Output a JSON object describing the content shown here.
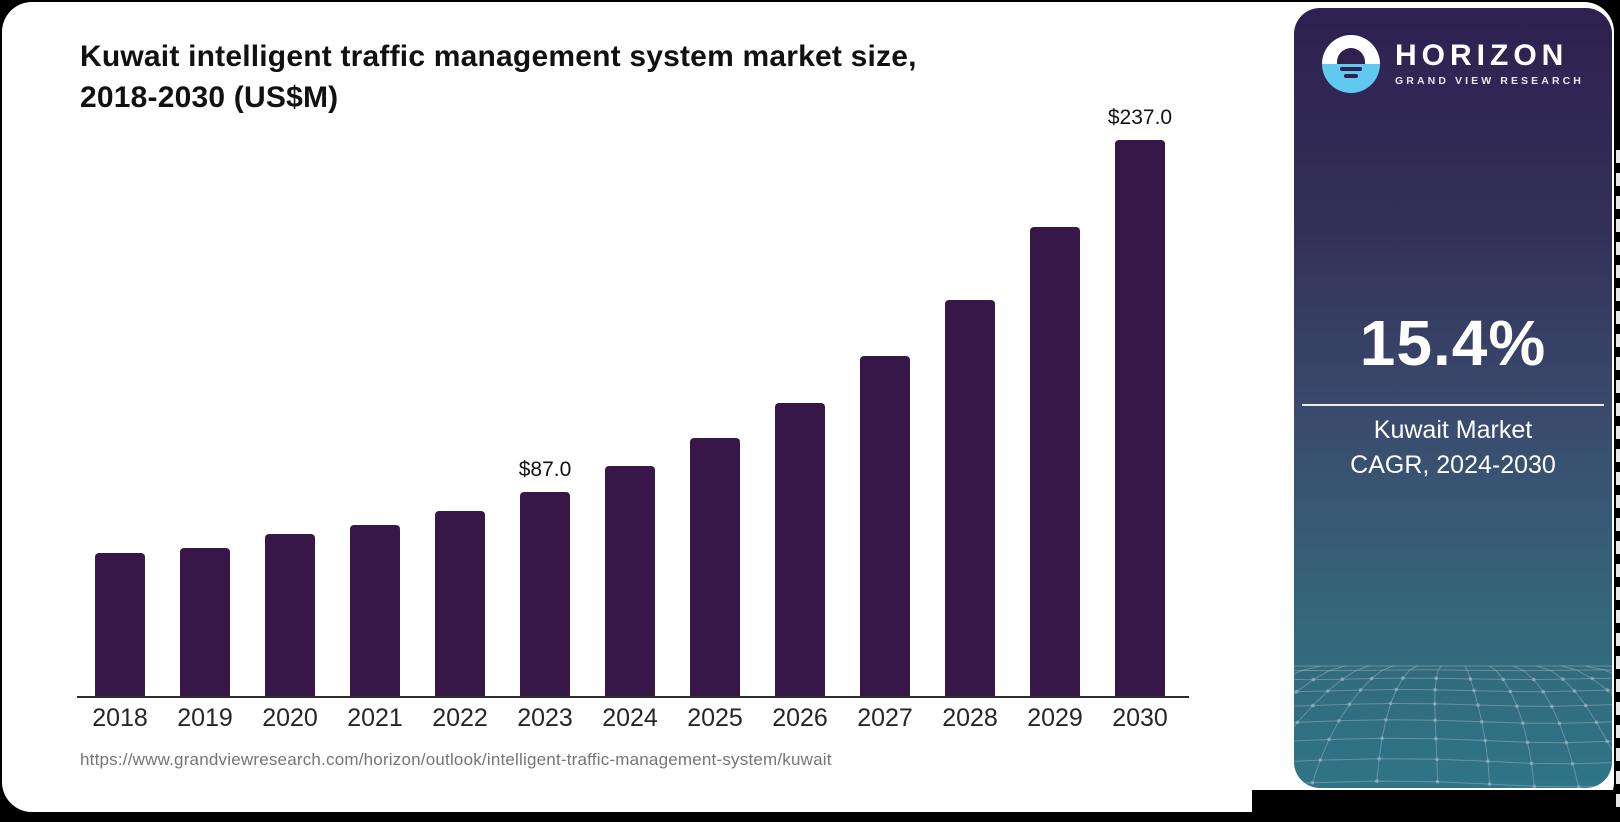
{
  "chart": {
    "title_line1": "Kuwait intelligent traffic management system market size,",
    "title_line2": "2018-2030 (US$M)",
    "source_url": "https://www.grandviewresearch.com/horizon/outlook/intelligent-traffic-management-system/kuwait",
    "chart_data": {
      "type": "bar",
      "title": "Kuwait intelligent traffic management system market size, 2018-2030 (US$M)",
      "categories": [
        "2018",
        "2019",
        "2020",
        "2021",
        "2022",
        "2023",
        "2024",
        "2025",
        "2026",
        "2027",
        "2028",
        "2029",
        "2030"
      ],
      "values": [
        61,
        63,
        69,
        73,
        79,
        87,
        98,
        110,
        125,
        145,
        169,
        200,
        237
      ],
      "point_labels": {
        "2023": "$87.0",
        "2030": "$237.0"
      },
      "xlabel": "",
      "ylabel": "",
      "ylim": [
        0,
        250
      ],
      "grid": false,
      "legend": null,
      "bar_color": "#371748"
    }
  },
  "sidebar": {
    "brand_name": "HORIZON",
    "brand_tagline": "GRAND VIEW RESEARCH",
    "stat_value": "15.4%",
    "stat_label_line1": "Kuwait Market",
    "stat_label_line2": "CAGR, 2024-2030",
    "colors": {
      "panel_top": "#2e2050",
      "panel_mid": "#3a4a6e",
      "panel_bottom": "#2f7488",
      "logo_blue": "#5fc9ef",
      "mesh_line": "#8fb0bb",
      "text": "#ffffff"
    }
  }
}
